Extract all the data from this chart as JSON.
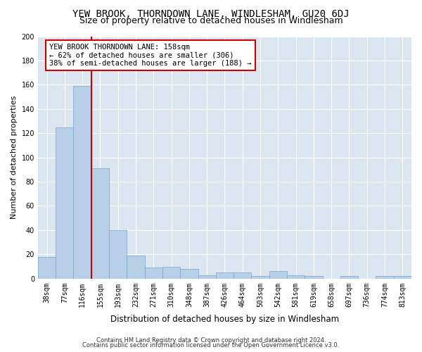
{
  "title": "YEW BROOK, THORNDOWN LANE, WINDLESHAM, GU20 6DJ",
  "subtitle": "Size of property relative to detached houses in Windlesham",
  "xlabel": "Distribution of detached houses by size in Windlesham",
  "ylabel": "Number of detached properties",
  "footer1": "Contains HM Land Registry data © Crown copyright and database right 2024.",
  "footer2": "Contains public sector information licensed under the Open Government Licence v3.0.",
  "categories": [
    "38sqm",
    "77sqm",
    "116sqm",
    "155sqm",
    "193sqm",
    "232sqm",
    "271sqm",
    "310sqm",
    "348sqm",
    "387sqm",
    "426sqm",
    "464sqm",
    "503sqm",
    "542sqm",
    "581sqm",
    "619sqm",
    "658sqm",
    "697sqm",
    "736sqm",
    "774sqm",
    "813sqm"
  ],
  "values": [
    18,
    125,
    159,
    91,
    40,
    19,
    9,
    10,
    8,
    3,
    5,
    5,
    2,
    6,
    3,
    2,
    0,
    2,
    0,
    2,
    2
  ],
  "bar_color": "#b8cfe8",
  "bar_edge_color": "#7aa3cc",
  "red_line_x": 2.5,
  "annotation_text": "YEW BROOK THORNDOWN LANE: 158sqm\n← 62% of detached houses are smaller (306)\n38% of semi-detached houses are larger (188) →",
  "annotation_box_color": "#ffffff",
  "annotation_box_edge": "#cc0000",
  "red_line_color": "#cc0000",
  "ylim": [
    0,
    200
  ],
  "yticks": [
    0,
    20,
    40,
    60,
    80,
    100,
    120,
    140,
    160,
    180,
    200
  ],
  "fig_background": "#ffffff",
  "plot_background": "#dce6f0",
  "grid_color": "#ffffff",
  "title_fontsize": 10,
  "subtitle_fontsize": 9,
  "ylabel_fontsize": 8,
  "xlabel_fontsize": 8.5,
  "tick_fontsize": 7,
  "annotation_fontsize": 7.5,
  "footer_fontsize": 6
}
